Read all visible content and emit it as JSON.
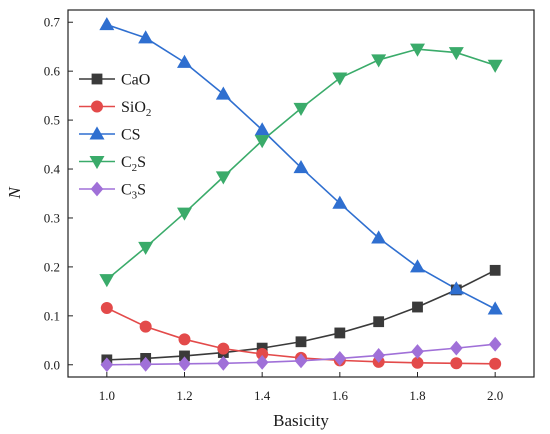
{
  "chart_data": {
    "type": "line",
    "xlabel": "Basicity",
    "ylabel": "N",
    "xlim": [
      0.9,
      2.1
    ],
    "ylim": [
      -0.025,
      0.725
    ],
    "x_ticks": [
      "1.0",
      "1.2",
      "1.4",
      "1.6",
      "1.8",
      "2.0"
    ],
    "y_ticks": [
      "0.0",
      "0.1",
      "0.2",
      "0.3",
      "0.4",
      "0.5",
      "0.6",
      "0.7"
    ],
    "grid": false,
    "legend_position": "upper-left",
    "x": [
      1.0,
      1.1,
      1.2,
      1.3,
      1.4,
      1.5,
      1.6,
      1.7,
      1.8,
      1.9,
      2.0
    ],
    "series": [
      {
        "name": "CaO",
        "label_base": "CaO",
        "label_sub": "",
        "label_tail": "",
        "color": "#3a3a3a",
        "marker": "square",
        "values": [
          0.01,
          0.013,
          0.018,
          0.025,
          0.034,
          0.047,
          0.065,
          0.088,
          0.118,
          0.153,
          0.193
        ]
      },
      {
        "name": "SiO2",
        "label_base": "SiO",
        "label_sub": "2",
        "label_tail": "",
        "color": "#e34a4a",
        "marker": "circle",
        "values": [
          0.116,
          0.078,
          0.052,
          0.033,
          0.022,
          0.014,
          0.009,
          0.006,
          0.004,
          0.003,
          0.002
        ]
      },
      {
        "name": "CS",
        "label_base": "CS",
        "label_sub": "",
        "label_tail": "",
        "color": "#2f6fd0",
        "marker": "triangle-up",
        "values": [
          0.695,
          0.668,
          0.618,
          0.553,
          0.48,
          0.403,
          0.33,
          0.259,
          0.2,
          0.155,
          0.114
        ]
      },
      {
        "name": "C2S",
        "label_base": "C",
        "label_sub": "2",
        "label_tail": "S",
        "color": "#3aab6a",
        "marker": "triangle-down",
        "values": [
          0.174,
          0.24,
          0.31,
          0.384,
          0.458,
          0.524,
          0.586,
          0.623,
          0.645,
          0.638,
          0.612
        ]
      },
      {
        "name": "C3S",
        "label_base": "C",
        "label_sub": "3",
        "label_tail": "S",
        "color": "#a070d8",
        "marker": "diamond",
        "values": [
          0.0,
          0.001,
          0.002,
          0.003,
          0.005,
          0.008,
          0.013,
          0.019,
          0.027,
          0.034,
          0.042
        ]
      }
    ]
  }
}
